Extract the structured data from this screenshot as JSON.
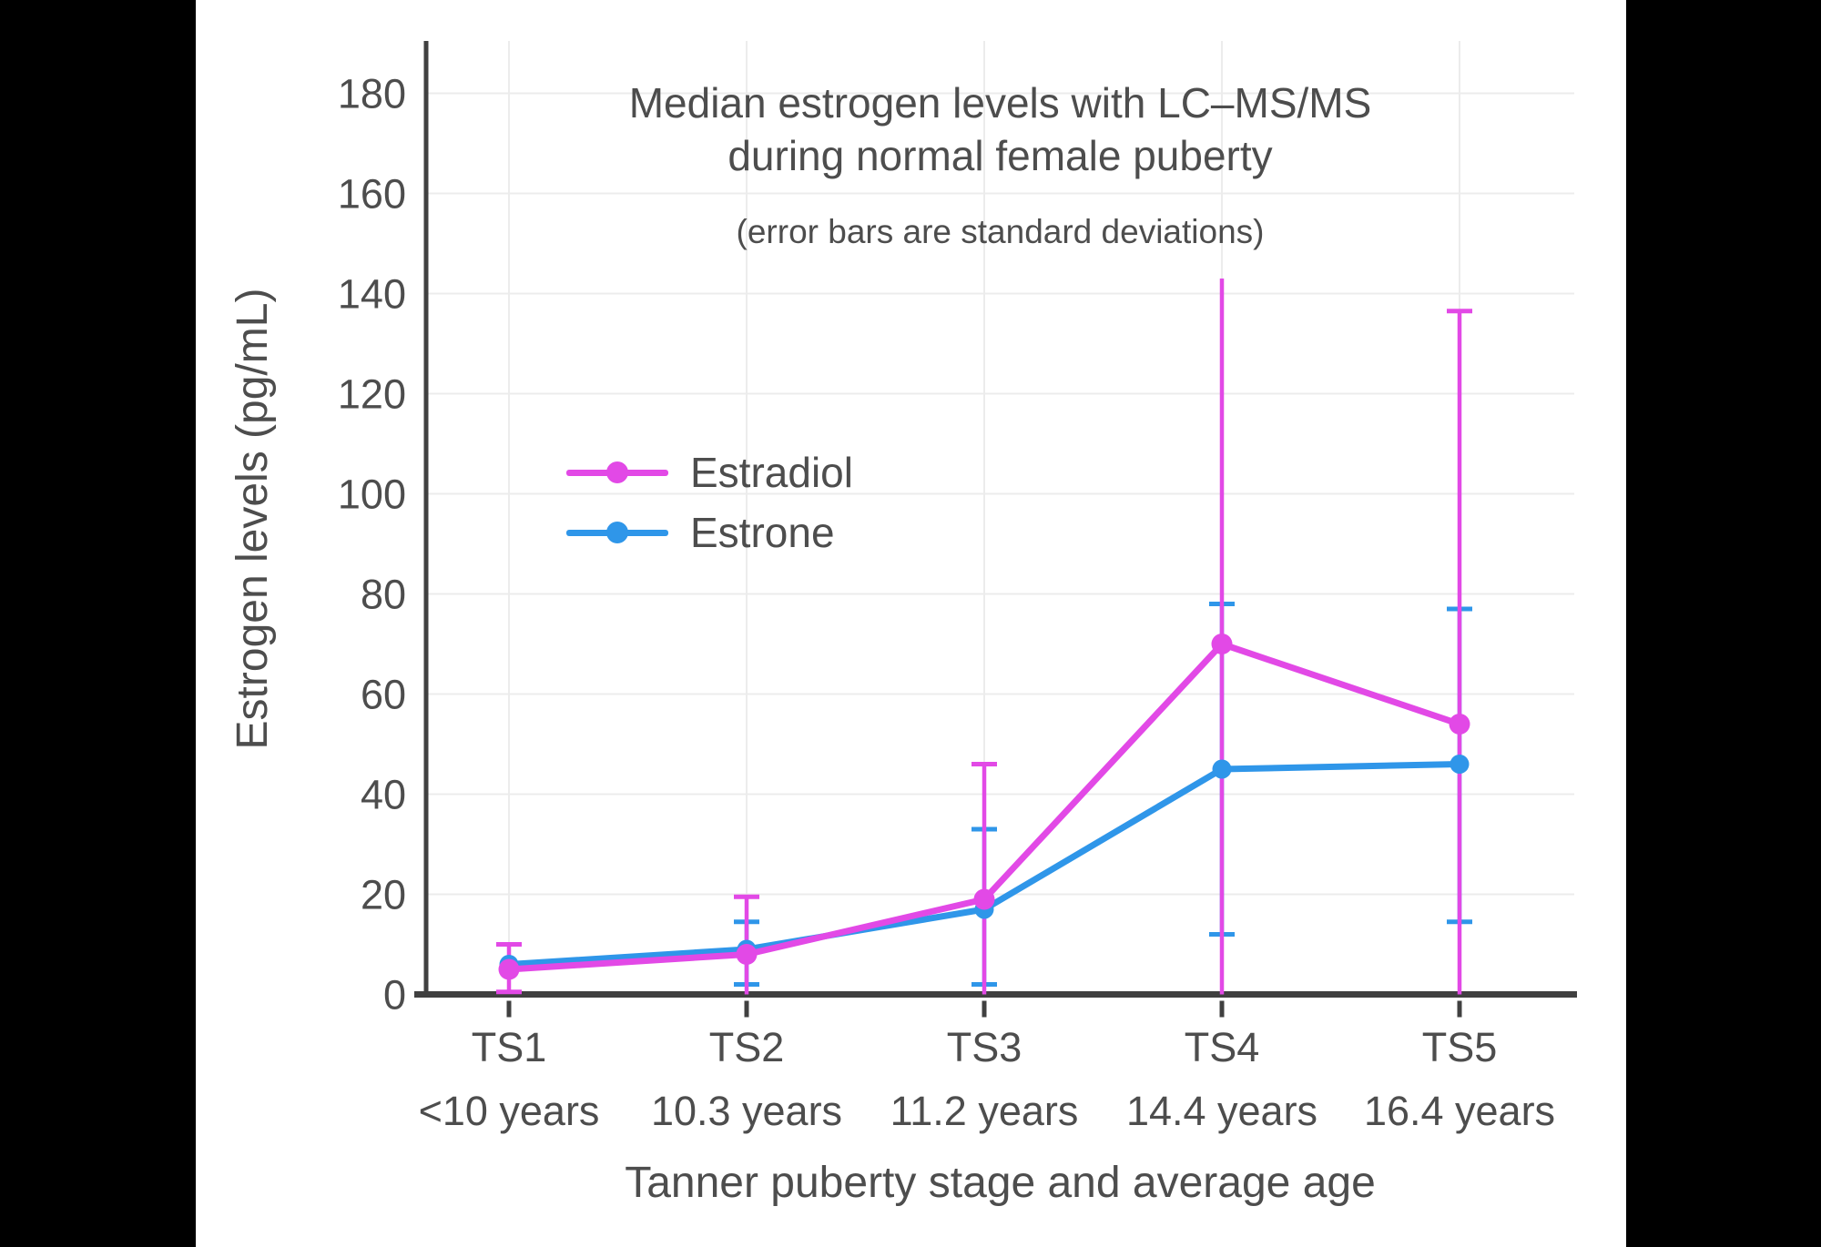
{
  "figure": {
    "outer_bg": "#000000",
    "plot_bg": "#ffffff"
  },
  "chart_data": {
    "type": "line",
    "title": "Median estrogen levels with LC–MS/MS",
    "title_line2": "during normal female puberty",
    "subtitle": "(error bars are standard deviations)",
    "xlabel": "Tanner puberty stage and average age",
    "ylabel": "Estrogen levels (pg/mL)",
    "ylim": [
      0,
      190
    ],
    "yticks": [
      0,
      20,
      40,
      60,
      80,
      100,
      120,
      140,
      160,
      180
    ],
    "grid": true,
    "legend_position": "upper-left-inside",
    "categories": [
      {
        "stage": "TS1",
        "age": "<10 years"
      },
      {
        "stage": "TS2",
        "age": "10.3 years"
      },
      {
        "stage": "TS3",
        "age": "11.2 years"
      },
      {
        "stage": "TS4",
        "age": "14.4 years"
      },
      {
        "stage": "TS5",
        "age": "16.4 years"
      }
    ],
    "series": [
      {
        "name": "Estradiol",
        "color": "#e249e6",
        "values": [
          5,
          8,
          19,
          70,
          54
        ],
        "error_high": [
          10,
          19.5,
          46,
          143,
          136.5
        ],
        "error_high_cap": [
          true,
          true,
          true,
          false,
          true
        ],
        "error_low": [
          0.5,
          0,
          0,
          0,
          0
        ],
        "error_low_cap": [
          true,
          false,
          false,
          false,
          false
        ],
        "error_low_clipped": [
          false,
          true,
          true,
          true,
          true
        ]
      },
      {
        "name": "Estrone",
        "color": "#2f96e9",
        "values": [
          6,
          9,
          17,
          45,
          46
        ],
        "error_high": [
          null,
          14.5,
          33,
          78,
          77
        ],
        "error_high_cap": [
          false,
          true,
          true,
          true,
          true
        ],
        "error_low": [
          null,
          2,
          2,
          12,
          14.5
        ],
        "error_low_cap": [
          false,
          true,
          true,
          true,
          true
        ],
        "error_low_clipped": [
          false,
          false,
          false,
          false,
          false
        ]
      }
    ],
    "colors": {
      "grid": "#ececec",
      "axis": "#404040",
      "text": "#4d4d4d"
    }
  }
}
